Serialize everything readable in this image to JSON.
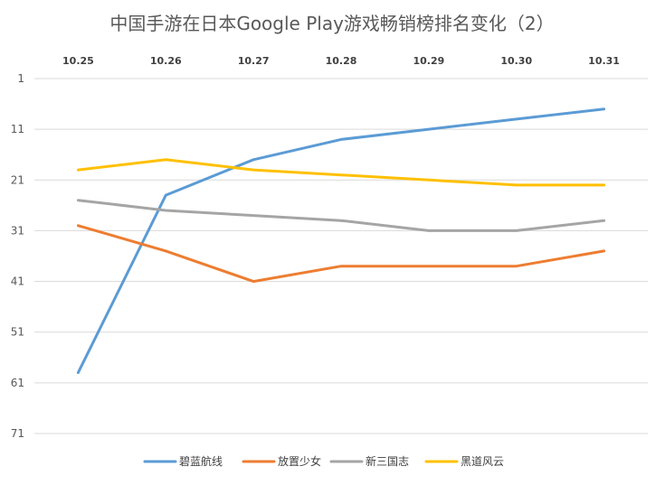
{
  "chart_data": {
    "type": "line",
    "title": "中国手游在日本Google Play游戏畅销榜排名变化（2）",
    "xlabel": "",
    "ylabel": "",
    "categories": [
      "10.25",
      "10.26",
      "10.27",
      "10.28",
      "10.29",
      "10.30",
      "10.31"
    ],
    "y_ticks": [
      1,
      11,
      21,
      31,
      41,
      51,
      61,
      71
    ],
    "ylim": [
      1,
      71
    ],
    "y_reversed": true,
    "x_axis_position": "top",
    "grid": true,
    "legend_position": "bottom",
    "series": [
      {
        "name": "碧蓝航线",
        "color": "#5b9bd5",
        "values": [
          59,
          24,
          17,
          13,
          11,
          9,
          7
        ]
      },
      {
        "name": "放置少女",
        "color": "#ed7d31",
        "values": [
          30,
          35,
          41,
          38,
          38,
          38,
          35
        ]
      },
      {
        "name": "新三国志",
        "color": "#a5a5a5",
        "values": [
          25,
          27,
          28,
          29,
          31,
          31,
          29
        ]
      },
      {
        "name": "黑道风云",
        "color": "#ffc000",
        "values": [
          19,
          17,
          19,
          20,
          21,
          22,
          22
        ]
      }
    ]
  }
}
